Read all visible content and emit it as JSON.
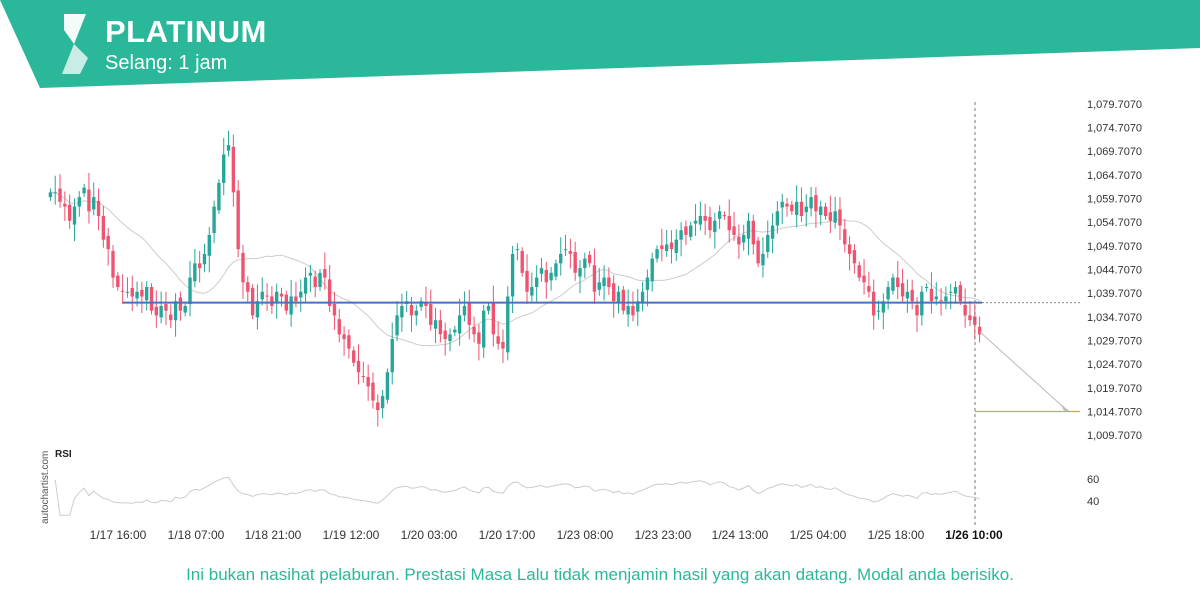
{
  "header": {
    "title": "PLATINUM",
    "subtitle": "Selang: 1 jam",
    "band_color": "#2bb89a"
  },
  "watermark": "autochartist.com",
  "disclaimer": "Ini bukan nasihat pelaburan. Prestasi Masa Lalu tidak menjamin hasil yang akan datang. Modal anda berisiko.",
  "colors": {
    "up": "#26a69a",
    "down": "#ef5370",
    "moving_average": "#cccccc",
    "support_line": "#4a72b8",
    "target_line": "#d9a441",
    "rsi": "#cccccc",
    "forecast_arrow": "#bbbbbb"
  },
  "chart_data": {
    "type": "candlestick",
    "instrument": "PLATINUM",
    "interval": "1 jam",
    "y_ticks": [
      "1,079.7070",
      "1,074.7070",
      "1,069.7070",
      "1,064.7070",
      "1,059.7070",
      "1,054.7070",
      "1,049.7070",
      "1,044.7070",
      "1,039.7070",
      "1,034.7070",
      "1,029.7070",
      "1,024.7070",
      "1,019.7070",
      "1,014.7070",
      "1,009.7070"
    ],
    "y_tick_values": [
      1079.707,
      1074.707,
      1069.707,
      1064.707,
      1059.707,
      1054.707,
      1049.707,
      1044.707,
      1039.707,
      1034.707,
      1029.707,
      1024.707,
      1019.707,
      1014.707,
      1009.707
    ],
    "x_ticks": [
      "1/17 16:00",
      "1/18 07:00",
      "1/18 21:00",
      "1/19 12:00",
      "1/20 03:00",
      "1/20 17:00",
      "1/23 08:00",
      "1/23 23:00",
      "1/24 13:00",
      "1/25 04:00",
      "1/25 18:00",
      "1/26 10:00"
    ],
    "current_x_tick": "1/26 10:00",
    "ylim": [
      1007.2,
      1082.2
    ],
    "support_level": 1037.7,
    "target_level": 1014.7,
    "forecast": {
      "from_price": 1031.5,
      "to_price": 1014.7
    },
    "rsi": {
      "label": "RSI",
      "ticks": [
        "60",
        "40"
      ],
      "tick_values": [
        60,
        40
      ],
      "ylim": [
        25,
        75
      ]
    },
    "closes": [
      1061,
      1061,
      1059,
      1058,
      1055,
      1058,
      1060,
      1062,
      1057,
      1060,
      1056,
      1051,
      1049,
      1043,
      1041,
      1040,
      1040,
      1039,
      1040,
      1039,
      1041,
      1036,
      1035,
      1037,
      1036,
      1034,
      1038,
      1036,
      1037,
      1043,
      1046,
      1045,
      1048,
      1052,
      1058,
      1063,
      1069,
      1071,
      1061,
      1049,
      1042,
      1040,
      1035,
      1038,
      1040,
      1039,
      1037,
      1040,
      1039,
      1036,
      1039,
      1038,
      1040,
      1043,
      1044,
      1041,
      1044,
      1043,
      1037,
      1035,
      1031,
      1030,
      1028,
      1025,
      1023,
      1022,
      1020,
      1017,
      1015,
      1018,
      1023,
      1030,
      1035,
      1037,
      1038,
      1035,
      1036,
      1038,
      1037,
      1033,
      1034,
      1031,
      1030,
      1031,
      1032,
      1035,
      1037,
      1033,
      1031,
      1029,
      1036,
      1037,
      1031,
      1029,
      1028,
      1039,
      1048,
      1049,
      1044,
      1040,
      1041,
      1043,
      1045,
      1042,
      1044,
      1046,
      1048,
      1049,
      1048,
      1044,
      1045,
      1047,
      1046,
      1040,
      1042,
      1043,
      1041,
      1038,
      1040,
      1036,
      1037,
      1035,
      1038,
      1040,
      1043,
      1047,
      1049,
      1049,
      1050,
      1049,
      1051,
      1053,
      1052,
      1054,
      1055,
      1056,
      1055,
      1053,
      1055,
      1057,
      1056,
      1053,
      1052,
      1050,
      1052,
      1055,
      1050,
      1046,
      1048,
      1052,
      1054,
      1057,
      1059,
      1058,
      1057,
      1059,
      1056,
      1058,
      1060,
      1057,
      1058,
      1056,
      1055,
      1057,
      1054,
      1050,
      1048,
      1046,
      1043,
      1042,
      1040,
      1035,
      1036,
      1038,
      1041,
      1043,
      1041,
      1039,
      1040,
      1038,
      1035,
      1040,
      1041,
      1038,
      1039,
      1038,
      1039,
      1040,
      1041,
      1038,
      1035,
      1034,
      1033,
      1031
    ]
  }
}
